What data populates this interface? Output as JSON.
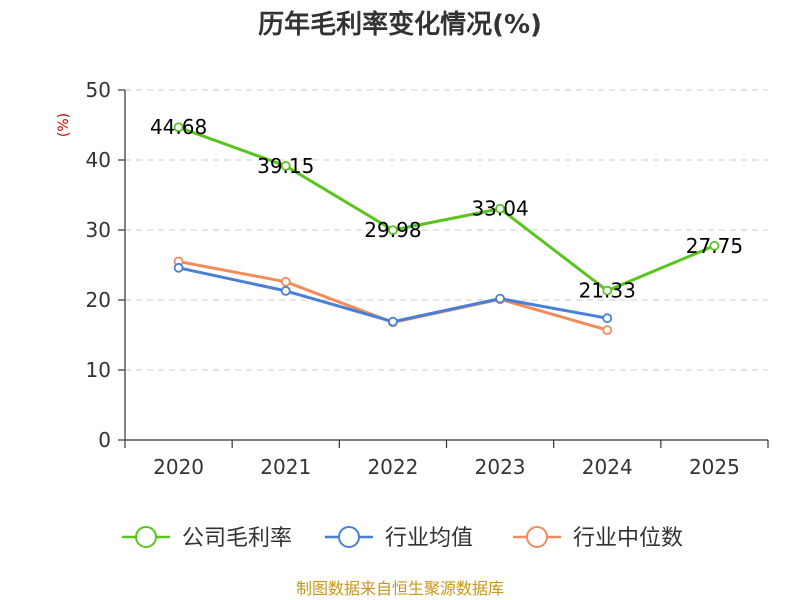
{
  "chart_data": {
    "type": "line",
    "title": "历年毛利率变化情况(%)",
    "ylabel": "(%)",
    "xlabel": "",
    "ylim": [
      0,
      50
    ],
    "yticks": [
      0,
      10,
      20,
      30,
      40,
      50
    ],
    "categories": [
      "2020",
      "2021",
      "2022",
      "2023",
      "2024",
      "2025"
    ],
    "series": [
      {
        "name": "公司毛利率",
        "color": "#5bc51f",
        "values": [
          44.68,
          39.15,
          29.98,
          33.04,
          21.33,
          27.75
        ],
        "labels": [
          "44.68",
          "39.15",
          "29.98",
          "33.04",
          "21.33",
          "27.75"
        ]
      },
      {
        "name": "行业均值",
        "color": "#4a7fd6",
        "values": [
          24.6,
          21.3,
          16.9,
          20.2,
          17.4,
          null
        ]
      },
      {
        "name": "行业中位数",
        "color": "#f28c5a",
        "values": [
          25.5,
          22.6,
          16.8,
          20.1,
          15.7,
          null
        ]
      }
    ],
    "legend_position": "bottom",
    "grid": true
  },
  "source": "制图数据来自恒生聚源数据库"
}
